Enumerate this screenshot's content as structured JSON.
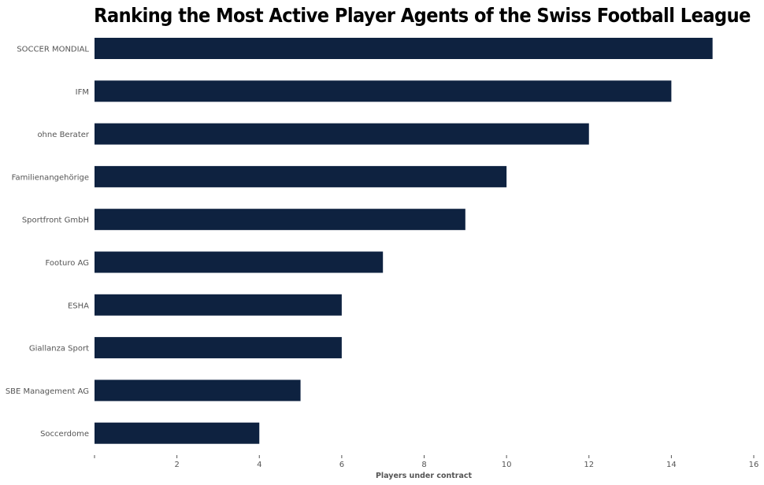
{
  "chart_data": {
    "type": "bar",
    "orientation": "horizontal",
    "title": "Ranking the Most Active Player Agents of the Swiss Football League",
    "xlabel": "Players under contract",
    "ylabel": "",
    "categories": [
      "SOCCER MONDIAL",
      "IFM",
      "ohne Berater",
      "Familienangehörige",
      "Sportfront GmbH",
      "Footuro AG",
      "ESHA",
      "Giallanza Sport",
      "SBE Management AG",
      "Soccerdome"
    ],
    "values": [
      15,
      14,
      12,
      10,
      9,
      7,
      6,
      6,
      5,
      4
    ],
    "xlim": [
      0,
      16
    ],
    "xticks": [
      "",
      "2",
      "4",
      "6",
      "8",
      "10",
      "12",
      "14",
      "16"
    ],
    "grid": false,
    "legend": "none",
    "bar_color": "#0e2240"
  }
}
